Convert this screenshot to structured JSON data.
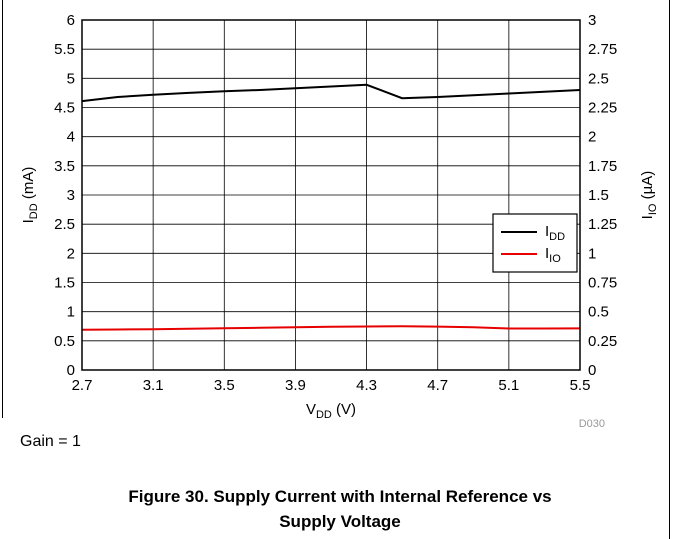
{
  "chart_data": {
    "type": "line",
    "figure_id": "D030",
    "xlabel": {
      "main": "V",
      "sub": "DD",
      "unit": " (V)"
    },
    "ylabel_left": {
      "main": "I",
      "sub": "DD",
      "unit": " (mA)"
    },
    "ylabel_right": {
      "main": "I",
      "sub": "IO",
      "unit": " (µA)"
    },
    "xlim": [
      2.7,
      5.5
    ],
    "ylim_left": [
      0,
      6
    ],
    "ylim_right": [
      0,
      3
    ],
    "x_ticks": [
      "2.7",
      "3.1",
      "3.5",
      "3.9",
      "4.3",
      "4.7",
      "5.1",
      "5.5"
    ],
    "y_ticks_left": [
      "0",
      "0.5",
      "1",
      "1.5",
      "2",
      "2.5",
      "3",
      "3.5",
      "4",
      "4.5",
      "5",
      "5.5",
      "6"
    ],
    "y_ticks_right": [
      "0",
      "0.25",
      "0.5",
      "0.75",
      "1",
      "1.25",
      "1.5",
      "1.75",
      "2",
      "2.25",
      "2.5",
      "2.75",
      "3"
    ],
    "grid": true,
    "legend_position": "right-middle",
    "series": [
      {
        "name": "I_DD",
        "label_main": "I",
        "label_sub": "DD",
        "axis": "left",
        "color": "#000000",
        "x": [
          2.7,
          2.9,
          3.1,
          3.3,
          3.5,
          3.7,
          3.9,
          4.1,
          4.3,
          4.5,
          4.7,
          4.9,
          5.1,
          5.3,
          5.5
        ],
        "y": [
          4.61,
          4.68,
          4.72,
          4.75,
          4.78,
          4.8,
          4.83,
          4.86,
          4.89,
          4.66,
          4.68,
          4.71,
          4.74,
          4.77,
          4.8
        ]
      },
      {
        "name": "I_IO",
        "label_main": "I",
        "label_sub": "IO",
        "axis": "right",
        "color": "#e60000",
        "x": [
          2.7,
          2.9,
          3.1,
          3.3,
          3.5,
          3.7,
          3.9,
          4.1,
          4.3,
          4.5,
          4.7,
          4.9,
          5.1,
          5.3,
          5.5
        ],
        "y": [
          0.345,
          0.347,
          0.35,
          0.354,
          0.358,
          0.362,
          0.366,
          0.37,
          0.373,
          0.375,
          0.372,
          0.366,
          0.356,
          0.356,
          0.357
        ]
      }
    ]
  },
  "note": "Gain = 1",
  "caption_line1": "Figure 30. Supply Current with Internal Reference vs",
  "caption_line2": "Supply Voltage"
}
